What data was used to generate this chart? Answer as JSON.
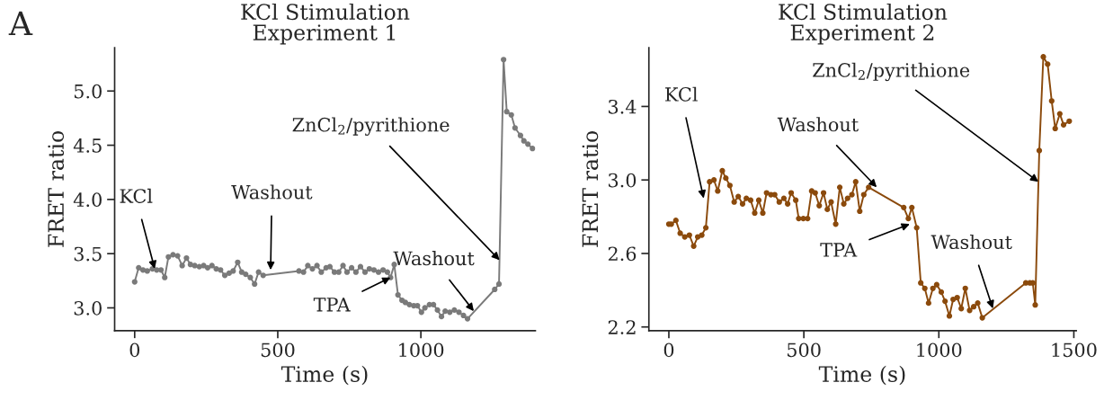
{
  "chart_data": [
    {
      "type": "line",
      "title": "KCl Stimulation\nExperiment 1",
      "xlabel": "Time (s)",
      "ylabel": "FRET ratio",
      "marker": "circle",
      "line_style": "solid",
      "grid": false,
      "legend": false,
      "xlim": [
        -70,
        1400
      ],
      "xticks": [
        0,
        500,
        1000
      ],
      "ylim": [
        2.79,
        5.4
      ],
      "yticks": [
        {
          "value": 3,
          "label": "3.0"
        },
        3.5,
        {
          "value": 4,
          "label": "4.0"
        },
        4.5,
        {
          "value": 5,
          "label": "5.0"
        }
      ],
      "series": [
        {
          "color": "#7a7a7a",
          "x": [
            0,
            14,
            29,
            44,
            62,
            77,
            92,
            105,
            118,
            134,
            150,
            166,
            181,
            195,
            210,
            226,
            241,
            255,
            270,
            285,
            300,
            315,
            330,
            344,
            360,
            374,
            388,
            404,
            419,
            433,
            449,
            574,
            590,
            605,
            621,
            637,
            652,
            669,
            682,
            698,
            713,
            728,
            742,
            758,
            773,
            789,
            805,
            820,
            836,
            852,
            868,
            883,
            894,
            907,
            920,
            934,
            946,
            960,
            975,
            988,
            1002,
            1014,
            1030,
            1044,
            1058,
            1072,
            1085,
            1101,
            1117,
            1133,
            1149,
            1163,
            1258,
            1273,
            1289,
            1300,
            1316,
            1329,
            1348,
            1360,
            1374,
            1390
          ],
          "values": [
            3.24,
            3.37,
            3.35,
            3.34,
            3.36,
            3.35,
            3.35,
            3.28,
            3.47,
            3.49,
            3.48,
            3.39,
            3.46,
            3.4,
            3.39,
            3.38,
            3.39,
            3.37,
            3.39,
            3.36,
            3.35,
            3.3,
            3.32,
            3.34,
            3.42,
            3.33,
            3.31,
            3.28,
            3.22,
            3.33,
            3.3,
            3.34,
            3.33,
            3.39,
            3.36,
            3.39,
            3.33,
            3.37,
            3.38,
            3.33,
            3.33,
            3.39,
            3.33,
            3.37,
            3.33,
            3.38,
            3.33,
            3.36,
            3.35,
            3.33,
            3.35,
            3.33,
            3.28,
            3.4,
            3.12,
            3.07,
            3.05,
            3.03,
            3.02,
            3.02,
            2.96,
            3.0,
            3.03,
            3.03,
            2.98,
            2.92,
            2.97,
            2.96,
            2.98,
            2.96,
            2.93,
            2.9,
            3.17,
            3.22,
            5.29,
            4.81,
            4.78,
            4.66,
            4.59,
            4.54,
            4.51,
            4.47
          ]
        }
      ],
      "annotations": [
        "A",
        {
          "text": "KCl",
          "x": 70,
          "y": 3.36
        },
        {
          "text": "Washout",
          "x": 475,
          "y": 3.35
        },
        {
          "text": "TPA",
          "x": 894,
          "y": 3.28
        },
        {
          "text": "Washout",
          "x": 1185,
          "y": 2.97
        },
        {
          "text": "ZnCl$_{2}$/pyrithione",
          "x": 1275,
          "y": 3.44
        }
      ]
    },
    {
      "type": "line",
      "title": "KCl Stimulation\nExperiment 2",
      "xlabel": "Time (s)",
      "ylabel": "FRET ratio",
      "marker": "circle",
      "line_style": "solid",
      "grid": false,
      "legend": false,
      "xlim": [
        -74,
        1509
      ],
      "xticks": [
        0,
        500,
        1000,
        1500
      ],
      "ylim": [
        2.18,
        3.72
      ],
      "yticks": [
        2.2,
        2.6,
        {
          "value": 3,
          "label": "3.0"
        },
        3.4
      ],
      "series": [
        {
          "color": "#8b4a0c",
          "x": [
            0,
            9,
            26,
            42,
            59,
            76,
            92,
            107,
            122,
            137,
            151,
            167,
            181,
            198,
            211,
            226,
            242,
            257,
            273,
            287,
            303,
            318,
            333,
            348,
            362,
            378,
            392,
            409,
            426,
            440,
            453,
            470,
            481,
            498,
            514,
            529,
            542,
            557,
            573,
            587,
            601,
            618,
            633,
            648,
            662,
            678,
            692,
            707,
            722,
            740,
            870,
            887,
            900,
            918,
            933,
            948,
            962,
            978,
            992,
            1009,
            1023,
            1039,
            1053,
            1068,
            1083,
            1098,
            1114,
            1129,
            1144,
            1161,
            1322,
            1337,
            1348,
            1357,
            1372,
            1387,
            1403,
            1418,
            1431,
            1448,
            1462,
            1483
          ],
          "values": [
            2.76,
            2.76,
            2.78,
            2.71,
            2.69,
            2.7,
            2.64,
            2.69,
            2.7,
            2.74,
            2.99,
            3.0,
            2.94,
            3.05,
            3.01,
            2.97,
            2.88,
            2.91,
            2.87,
            2.9,
            2.89,
            2.82,
            2.89,
            2.82,
            2.93,
            2.92,
            2.92,
            2.88,
            2.9,
            2.87,
            2.93,
            2.89,
            2.79,
            2.79,
            2.79,
            2.94,
            2.93,
            2.86,
            2.93,
            2.84,
            2.88,
            2.76,
            2.96,
            2.87,
            2.9,
            2.92,
            2.99,
            2.83,
            2.92,
            2.96,
            2.85,
            2.79,
            2.85,
            2.74,
            2.44,
            2.41,
            2.33,
            2.41,
            2.43,
            2.39,
            2.34,
            2.26,
            2.35,
            2.36,
            2.3,
            2.41,
            2.29,
            2.31,
            2.33,
            2.25,
            2.44,
            2.44,
            2.44,
            2.32,
            3.16,
            3.67,
            3.63,
            3.43,
            3.28,
            3.36,
            3.3,
            3.32
          ]
        }
      ],
      "annotations": [
        {
          "text": "KCl",
          "x": 129,
          "y": 2.9
        },
        {
          "text": "Washout",
          "x": 770,
          "y": 2.96
        },
        {
          "text": "TPA",
          "x": 892,
          "y": 2.76
        },
        {
          "text": "Washout",
          "x": 1200,
          "y": 2.3
        },
        {
          "text": "ZnCl$_{2}$/pyrithione",
          "x": 1369,
          "y": 2.99
        }
      ]
    }
  ]
}
